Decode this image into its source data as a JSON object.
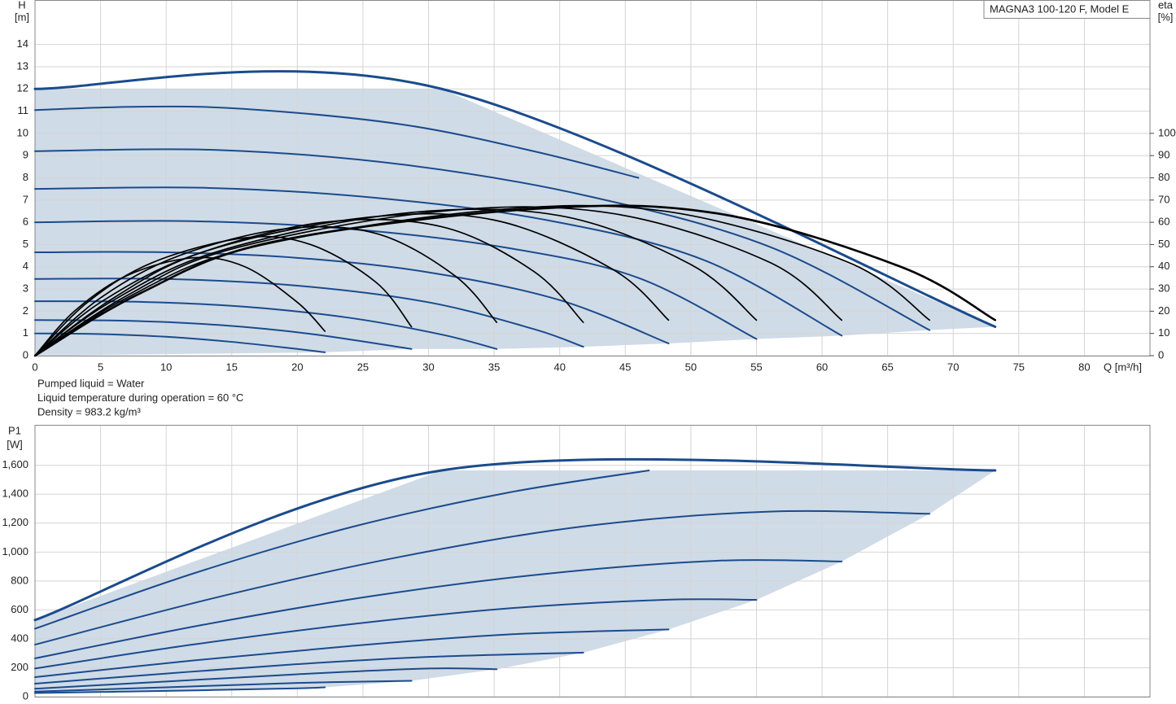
{
  "chart_data": [
    {
      "type": "line",
      "title": "MAGNA3 100-120 F, Model E",
      "ylabel": "H",
      "yunit": "[m]",
      "y2label": "eta",
      "y2unit": "[%]",
      "xlabel": "Q [m³/h]",
      "notes": [
        "Pumped liquid = Water",
        "Liquid temperature during operation = 60 °C",
        "Density = 983.2 kg/m³"
      ],
      "xlim": [
        0,
        85
      ],
      "xticks": [
        0,
        5,
        10,
        15,
        20,
        25,
        30,
        35,
        40,
        45,
        50,
        55,
        60,
        65,
        70,
        75,
        80
      ],
      "ylim": [
        0,
        16
      ],
      "yticks": [
        0,
        1,
        2,
        3,
        4,
        5,
        6,
        7,
        8,
        9,
        10,
        11,
        12,
        13,
        14
      ],
      "y2lim": [
        0,
        160
      ],
      "y2ticks": [
        0,
        10,
        20,
        30,
        40,
        50,
        60,
        70,
        80,
        90,
        100
      ],
      "grid": true,
      "area_color": "#cfdbe7",
      "series": [
        {
          "color": "#1b4b8c",
          "x": [
            0,
            5,
            10,
            15,
            20,
            22.1
          ],
          "values": [
            1.0,
            0.97,
            0.85,
            0.62,
            0.3,
            0.15
          ]
        },
        {
          "color": "#1b4b8c",
          "x": [
            0,
            7,
            14,
            21,
            28.7
          ],
          "values": [
            1.6,
            1.57,
            1.38,
            0.98,
            0.3
          ]
        },
        {
          "color": "#1b4b8c",
          "x": [
            0,
            8,
            16,
            24,
            31,
            35.2
          ],
          "values": [
            2.45,
            2.42,
            2.2,
            1.7,
            0.95,
            0.3
          ]
        },
        {
          "color": "#1b4b8c",
          "x": [
            0,
            10,
            20,
            30,
            38,
            41.8
          ],
          "values": [
            3.45,
            3.45,
            3.15,
            2.4,
            1.2,
            0.4
          ]
        },
        {
          "color": "#1b4b8c",
          "x": [
            0,
            10,
            20,
            30,
            40,
            48.3
          ],
          "values": [
            4.65,
            4.65,
            4.4,
            3.75,
            2.5,
            0.55
          ]
        },
        {
          "color": "#1b4b8c",
          "x": [
            0,
            12,
            24,
            36,
            46,
            55
          ],
          "values": [
            6.0,
            6.05,
            5.7,
            4.85,
            3.5,
            0.75
          ]
        },
        {
          "color": "#1b4b8c",
          "x": [
            0,
            13,
            26,
            39,
            51,
            61.5
          ],
          "values": [
            7.5,
            7.55,
            7.1,
            6.1,
            4.3,
            0.9
          ]
        },
        {
          "color": "#1b4b8c",
          "x": [
            0,
            14,
            28,
            42,
            56,
            68.2
          ],
          "values": [
            9.2,
            9.25,
            8.6,
            7.2,
            4.9,
            1.15
          ]
        },
        {
          "color": "#1b4b8c",
          "x": [
            0,
            8,
            16,
            28,
            38,
            46
          ],
          "values": [
            11.05,
            11.2,
            11.1,
            10.4,
            9.2,
            8.0
          ]
        },
        {
          "color": "#1b4b8c",
          "envelope": true,
          "x": [
            0,
            31,
            73.2
          ],
          "values": [
            12,
            12,
            1.3
          ]
        },
        {
          "color": "#000000",
          "axis": "y2",
          "x": [
            0,
            3,
            7,
            12,
            16,
            20,
            22.1
          ],
          "values": [
            0,
            20,
            36,
            44,
            40,
            24,
            11
          ]
        },
        {
          "color": "#000000",
          "axis": "y2",
          "x": [
            0,
            4,
            9,
            16,
            21,
            26,
            28.7
          ],
          "values": [
            0,
            24,
            42,
            53,
            50,
            33,
            13
          ]
        },
        {
          "color": "#000000",
          "axis": "y2",
          "x": [
            0,
            5,
            11,
            19,
            26,
            32,
            35.2
          ],
          "values": [
            0,
            26,
            45,
            57,
            55,
            36,
            15
          ]
        },
        {
          "color": "#000000",
          "axis": "y2",
          "x": [
            0,
            5,
            12,
            22,
            31,
            38,
            41.8
          ],
          "values": [
            0,
            24,
            45,
            60,
            58,
            38,
            15
          ]
        },
        {
          "color": "#000000",
          "axis": "y2",
          "x": [
            0,
            6,
            13,
            25,
            35,
            44,
            48.3
          ],
          "values": [
            0,
            26,
            47,
            62,
            61,
            39,
            16
          ]
        },
        {
          "color": "#000000",
          "axis": "y2",
          "x": [
            0,
            6,
            14,
            28,
            40,
            50,
            55
          ],
          "values": [
            0,
            25,
            47,
            64,
            63,
            41,
            16
          ]
        },
        {
          "color": "#000000",
          "axis": "y2",
          "x": [
            0,
            7,
            15,
            31,
            44,
            56,
            61.5
          ],
          "values": [
            0,
            27,
            48,
            65,
            64,
            42,
            16
          ]
        },
        {
          "color": "#000000",
          "axis": "y2",
          "x": [
            0,
            7,
            16,
            34,
            48,
            62,
            68.2
          ],
          "values": [
            0,
            26,
            48,
            65,
            65,
            42,
            16
          ]
        },
        {
          "color": "#000000",
          "axis": "y2",
          "x": [
            0,
            8,
            18,
            38,
            52,
            66,
            73.2
          ],
          "values": [
            0,
            28,
            51,
            66,
            64,
            40,
            16
          ]
        }
      ]
    },
    {
      "type": "line",
      "ylabel": "P1",
      "yunit": "[W]",
      "xlim": [
        0,
        85
      ],
      "xticks": [
        0,
        5,
        10,
        15,
        20,
        25,
        30,
        35,
        40,
        45,
        50,
        55,
        60,
        65,
        70,
        75,
        80
      ],
      "ylim": [
        0,
        1880
      ],
      "yticks": [
        0,
        200,
        400,
        600,
        800,
        {
          "value": 1000,
          "label": "1,000"
        },
        {
          "value": 1200,
          "label": "1,200"
        },
        {
          "value": 1400,
          "label": "1,400"
        },
        {
          "value": 1600,
          "label": "1,600"
        }
      ],
      "grid": true,
      "area_color": "#cfdbe7",
      "series": [
        {
          "color": "#1b4b8c",
          "x": [
            0,
            10,
            20,
            22.1
          ],
          "values": [
            25,
            40,
            58,
            65
          ]
        },
        {
          "color": "#1b4b8c",
          "x": [
            0,
            10,
            20,
            28.7
          ],
          "values": [
            35,
            65,
            95,
            110
          ]
        },
        {
          "color": "#1b4b8c",
          "x": [
            0,
            10,
            20,
            30,
            35.2
          ],
          "values": [
            55,
            105,
            155,
            195,
            190
          ]
        },
        {
          "color": "#1b4b8c",
          "x": [
            0,
            10,
            20,
            30,
            41.8
          ],
          "values": [
            90,
            160,
            225,
            275,
            305
          ]
        },
        {
          "color": "#1b4b8c",
          "x": [
            0,
            12,
            24,
            36,
            48.3
          ],
          "values": [
            135,
            250,
            350,
            430,
            465
          ]
        },
        {
          "color": "#1b4b8c",
          "x": [
            0,
            12,
            24,
            36,
            48,
            55
          ],
          "values": [
            195,
            360,
            500,
            610,
            670,
            670
          ]
        },
        {
          "color": "#1b4b8c",
          "x": [
            0,
            13,
            26,
            39,
            52,
            61.5
          ],
          "values": [
            265,
            500,
            700,
            850,
            940,
            935
          ]
        },
        {
          "color": "#1b4b8c",
          "x": [
            0,
            14,
            28,
            42,
            56,
            68.2
          ],
          "values": [
            360,
            690,
            970,
            1180,
            1280,
            1265
          ]
        },
        {
          "color": "#1b4b8c",
          "x": [
            0,
            12,
            24,
            36,
            46.8
          ],
          "values": [
            470,
            850,
            1170,
            1410,
            1565
          ]
        },
        {
          "color": "#1b4b8c",
          "envelope": true,
          "x": [
            0,
            31,
            73.2
          ],
          "values": [
            530,
            1565,
            1565
          ]
        }
      ]
    }
  ]
}
